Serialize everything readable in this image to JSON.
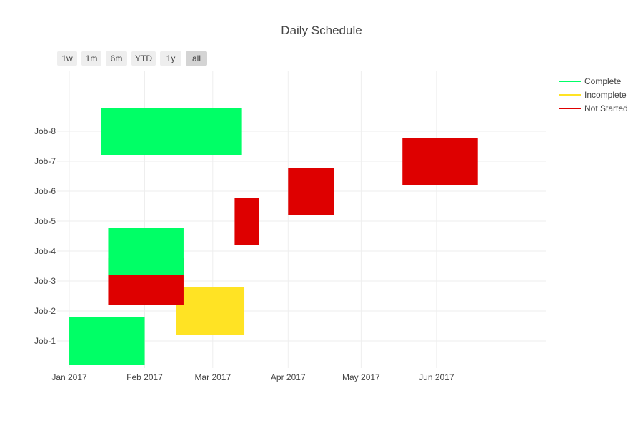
{
  "chart_data": {
    "type": "gantt",
    "title": "Daily Schedule",
    "range_buttons": [
      "1w",
      "1m",
      "6m",
      "YTD",
      "1y",
      "all"
    ],
    "active_range": "all",
    "x_range": [
      "2016-12-27",
      "2017-07-16"
    ],
    "y_categories": [
      "Job-1",
      "Job-2",
      "Job-3",
      "Job-4",
      "Job-5",
      "Job-6",
      "Job-7",
      "Job-8"
    ],
    "x_tick_labels": [
      "Jan 2017",
      "Feb 2017",
      "Mar 2017",
      "Apr 2017",
      "May 2017",
      "Jun 2017"
    ],
    "x_tick_dates": [
      "2017-01-01",
      "2017-02-01",
      "2017-03-01",
      "2017-04-01",
      "2017-05-01",
      "2017-06-01"
    ],
    "legend": [
      {
        "name": "Complete",
        "color": "#00ff66"
      },
      {
        "name": "Incomplete",
        "color": "#ffe324"
      },
      {
        "name": "Not Started",
        "color": "#de0000"
      }
    ],
    "tasks": [
      {
        "task": "Job-1",
        "start": "2017-01-01",
        "finish": "2017-02-01",
        "status": "Complete"
      },
      {
        "task": "Job-2",
        "start": "2017-02-14",
        "finish": "2017-03-14",
        "status": "Incomplete"
      },
      {
        "task": "Job-3",
        "start": "2017-01-17",
        "finish": "2017-02-17",
        "status": "Not Started"
      },
      {
        "task": "Job-4",
        "start": "2017-01-17",
        "finish": "2017-02-17",
        "status": "Complete"
      },
      {
        "task": "Job-5",
        "start": "2017-03-10",
        "finish": "2017-03-20",
        "status": "Not Started"
      },
      {
        "task": "Job-6",
        "start": "2017-04-01",
        "finish": "2017-04-20",
        "status": "Not Started"
      },
      {
        "task": "Job-7",
        "start": "2017-05-18",
        "finish": "2017-06-18",
        "status": "Not Started"
      },
      {
        "task": "Job-8",
        "start": "2017-01-14",
        "finish": "2017-03-13",
        "status": "Complete"
      }
    ]
  }
}
